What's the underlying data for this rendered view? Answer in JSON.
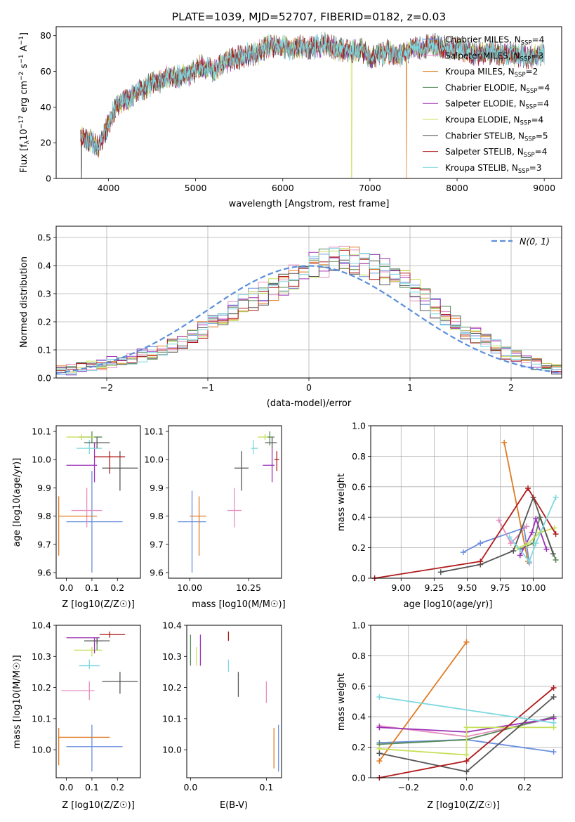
{
  "figure": {
    "title": "PLATE=1039, MJD=52707, FIBERID=0182, z=0.03"
  },
  "colors": {
    "Chabrier MILES": "#6b8fde",
    "Salpeter MILES": "#e58fc0",
    "Kroupa MILES": "#e07b22",
    "Chabrier ELODIE": "#5a8a5a",
    "Salpeter ELODIE": "#9b30b8",
    "Kroupa ELODIE": "#c6e05a",
    "Chabrier STELIB": "#555555",
    "Salpeter STELIB": "#b01c1c",
    "Kroupa STELIB": "#7fd8e0",
    "normal": "#5b8fdb"
  },
  "chart_data": [
    {
      "id": "spectrum",
      "type": "line",
      "xlabel": "wavelength [Angstrom, rest frame]",
      "ylabel": "Flux [f_λ 10^-17 erg cm^-2 s^-1 A^-1]",
      "xlim": [
        3400,
        9200
      ],
      "ylim": [
        0,
        85
      ],
      "xticks": [
        4000,
        5000,
        6000,
        7000,
        8000,
        9000
      ],
      "yticks": [
        0,
        20,
        40,
        60,
        80
      ],
      "grid": false,
      "legend_position": "top-right",
      "series": [
        {
          "name": "Chabrier MILES, N_SSP=4",
          "label": "Chabrier MILES, N",
          "nssp": "=4"
        },
        {
          "name": "Salpeter MILES, N_SSP=3",
          "label": "Salpeter MILES, N",
          "nssp": "=3"
        },
        {
          "name": "Kroupa MILES, N_SSP=2",
          "label": "Kroupa MILES, N",
          "nssp": "=2"
        },
        {
          "name": "Chabrier ELODIE, N_SSP=4",
          "label": "Chabrier ELODIE, N",
          "nssp": "=4"
        },
        {
          "name": "Salpeter ELODIE, N_SSP=4",
          "label": "Salpeter ELODIE, N",
          "nssp": "=4"
        },
        {
          "name": "Kroupa ELODIE, N_SSP=4",
          "label": "Kroupa ELODIE, N",
          "nssp": "=4"
        },
        {
          "name": "Chabrier STELIB, N_SSP=5",
          "label": "Chabrier STELIB, N",
          "nssp": "=5"
        },
        {
          "name": "Salpeter STELIB, N_SSP=4",
          "label": "Salpeter STELIB, N",
          "nssp": "=4"
        },
        {
          "name": "Kroupa STELIB, N_SSP=3",
          "label": "Kroupa STELIB, N",
          "nssp": "=3"
        }
      ],
      "continuum": {
        "x": [
          3680,
          3720,
          3800,
          3900,
          4000,
          4050,
          4100,
          4200,
          4300,
          4400,
          4500,
          4600,
          4700,
          4800,
          4900,
          5000,
          5100,
          5200,
          5300,
          5400,
          5500,
          5600,
          5700,
          5800,
          5900,
          6000,
          6100,
          6200,
          6300,
          6400,
          6500,
          6600,
          6700,
          6800,
          6900,
          7000,
          7100,
          7200,
          7300,
          7400,
          7500,
          7600,
          7700,
          7800,
          7900,
          8000,
          8100,
          8200,
          8300,
          8400,
          8500,
          8600,
          8700,
          8800,
          8900,
          9000
        ],
        "y": [
          25,
          22,
          21,
          18,
          31,
          36,
          40,
          44,
          47,
          50,
          53,
          55,
          57,
          57,
          58,
          61,
          63,
          61,
          64,
          67,
          68,
          69,
          70,
          73,
          75,
          74,
          72,
          74,
          73,
          74,
          76,
          73,
          72,
          71,
          72,
          67,
          69,
          71,
          69,
          70,
          74,
          73,
          75,
          74,
          73,
          73,
          72,
          70,
          70,
          71,
          70,
          70,
          69,
          68,
          68,
          70
        ]
      },
      "dropouts": [
        {
          "model": "Kroupa MILES",
          "x": 7420,
          "y": 0
        },
        {
          "model": "Kroupa ELODIE",
          "x": 6790,
          "y": 0
        },
        {
          "model": "Chabrier STELIB",
          "x": 3690,
          "y": 0
        }
      ]
    },
    {
      "id": "residuals",
      "type": "area",
      "xlabel": "(data-model)/error",
      "ylabel": "Normed distribution",
      "xlim": [
        -2.5,
        2.5
      ],
      "ylim": [
        0,
        0.54
      ],
      "xticks": [
        -2,
        -1,
        0,
        1,
        2
      ],
      "yticks": [
        0.0,
        0.1,
        0.2,
        0.3,
        0.4,
        0.5
      ],
      "grid": true,
      "legend_position": "top-right",
      "legend_label": "N(0, 1)",
      "bin_width": 0.1,
      "bin_start": -2.5,
      "heights": [
        0.027,
        0.03,
        0.035,
        0.04,
        0.05,
        0.055,
        0.06,
        0.07,
        0.08,
        0.09,
        0.1,
        0.115,
        0.13,
        0.15,
        0.17,
        0.19,
        0.21,
        0.235,
        0.26,
        0.28,
        0.3,
        0.32,
        0.34,
        0.36,
        0.38,
        0.4,
        0.41,
        0.42,
        0.43,
        0.42,
        0.41,
        0.4,
        0.38,
        0.36,
        0.34,
        0.31,
        0.28,
        0.25,
        0.22,
        0.19,
        0.17,
        0.15,
        0.13,
        0.11,
        0.09,
        0.075,
        0.06,
        0.05,
        0.04,
        0.033
      ]
    },
    {
      "id": "age-vs-Z",
      "type": "scatter",
      "xlabel": "Z [log10(Z/Z☉)]",
      "ylabel": "age [log10(age/yr)]",
      "xlim": [
        -0.04,
        0.29
      ],
      "ylim": [
        9.58,
        10.12
      ],
      "xticks": [
        0.0,
        0.1,
        0.2
      ],
      "yticks": [
        9.6,
        9.7,
        9.8,
        9.9,
        10.0,
        10.1
      ],
      "points": [
        {
          "model": "Chabrier MILES",
          "x": 0.1,
          "y": 9.78,
          "xlo": 0.0,
          "xhi": 0.22,
          "ylo": 9.6,
          "yhi": 9.96
        },
        {
          "model": "Salpeter MILES",
          "x": 0.08,
          "y": 9.82,
          "xlo": 0.02,
          "xhi": 0.14,
          "ylo": 9.76,
          "yhi": 9.9
        },
        {
          "model": "Kroupa MILES",
          "x": -0.03,
          "y": 9.8,
          "xlo": -0.03,
          "xhi": 0.12,
          "ylo": 9.66,
          "yhi": 9.87
        },
        {
          "model": "Chabrier ELODIE",
          "x": 0.1,
          "y": 10.08,
          "xlo": 0.05,
          "xhi": 0.14,
          "ylo": 10.06,
          "yhi": 10.1
        },
        {
          "model": "Salpeter ELODIE",
          "x": 0.11,
          "y": 9.98,
          "xlo": 0.0,
          "xhi": 0.12,
          "ylo": 9.92,
          "yhi": 10.06
        },
        {
          "model": "Kroupa ELODIE",
          "x": 0.06,
          "y": 10.08,
          "xlo": 0.0,
          "xhi": 0.11,
          "ylo": 10.07,
          "yhi": 10.09
        },
        {
          "model": "Chabrier STELIB",
          "x": 0.21,
          "y": 9.97,
          "xlo": 0.14,
          "xhi": 0.28,
          "ylo": 9.89,
          "yhi": 10.03
        },
        {
          "model": "Salpeter STELIB",
          "x": 0.17,
          "y": 10.01,
          "xlo": 0.11,
          "xhi": 0.23,
          "ylo": 9.95,
          "yhi": 10.03
        },
        {
          "model": "Kroupa STELIB",
          "x": 0.09,
          "y": 10.04,
          "xlo": 0.04,
          "xhi": 0.14,
          "ylo": 10.02,
          "yhi": 10.07
        },
        {
          "model": "Chabrier STELIB",
          "x": 0.12,
          "y": 10.06,
          "xlo": 0.07,
          "xhi": 0.17,
          "ylo": 10.04,
          "yhi": 10.08
        }
      ]
    },
    {
      "id": "age-vs-mass",
      "type": "scatter",
      "xlabel": "mass [log10(M/M☉)]",
      "ylabel": "",
      "xlim": [
        9.91,
        10.39
      ],
      "ylim": [
        9.58,
        10.12
      ],
      "xticks": [
        10.0,
        10.25
      ],
      "yticks": [
        9.6,
        9.7,
        9.8,
        9.9,
        10.0,
        10.1
      ],
      "points": [
        {
          "model": "Chabrier MILES",
          "x": 10.01,
          "y": 9.78,
          "xlo": 9.95,
          "xhi": 10.07,
          "ylo": 9.6,
          "yhi": 9.89
        },
        {
          "model": "Kroupa MILES",
          "x": 10.04,
          "y": 9.8,
          "xlo": 10.0,
          "xhi": 10.07,
          "ylo": 9.66,
          "yhi": 9.87
        },
        {
          "model": "Salpeter MILES",
          "x": 10.19,
          "y": 9.82,
          "xlo": 10.16,
          "xhi": 10.22,
          "ylo": 9.76,
          "yhi": 9.9
        },
        {
          "model": "Chabrier STELIB",
          "x": 10.22,
          "y": 9.97,
          "xlo": 10.19,
          "xhi": 10.25,
          "ylo": 9.89,
          "yhi": 10.03
        },
        {
          "model": "Salpeter ELODIE",
          "x": 10.35,
          "y": 9.98,
          "xlo": 10.31,
          "xhi": 10.36,
          "ylo": 9.92,
          "yhi": 10.04
        },
        {
          "model": "Salpeter STELIB",
          "x": 10.37,
          "y": 10.0,
          "xlo": 10.36,
          "xhi": 10.38,
          "ylo": 9.96,
          "yhi": 10.03
        },
        {
          "model": "Kroupa STELIB",
          "x": 10.27,
          "y": 10.04,
          "xlo": 10.26,
          "xhi": 10.29,
          "ylo": 10.02,
          "yhi": 10.07
        },
        {
          "model": "Kroupa ELODIE",
          "x": 10.32,
          "y": 10.08,
          "xlo": 10.29,
          "xhi": 10.35,
          "ylo": 10.07,
          "yhi": 10.09
        },
        {
          "model": "Chabrier ELODIE",
          "x": 10.34,
          "y": 10.08,
          "xlo": 10.33,
          "xhi": 10.36,
          "ylo": 10.05,
          "yhi": 10.1
        },
        {
          "model": "Chabrier STELIB",
          "x": 10.35,
          "y": 10.06,
          "xlo": 10.32,
          "xhi": 10.37,
          "ylo": 10.04,
          "yhi": 10.08
        }
      ]
    },
    {
      "id": "massweight-vs-age",
      "type": "line",
      "xlabel": "age [log10(age/yr)]",
      "ylabel": "mass weight",
      "xlim": [
        8.77,
        10.22
      ],
      "ylim": [
        0,
        1
      ],
      "xticks": [
        9.0,
        9.25,
        9.5,
        9.75,
        10.0
      ],
      "yticks": [
        0.0,
        0.2,
        0.4,
        0.6,
        0.8,
        1.0
      ],
      "grid": true,
      "series": [
        {
          "model": "Chabrier MILES",
          "x": [
            9.47,
            9.6,
            9.93,
            9.97
          ],
          "y": [
            0.17,
            0.23,
            0.33,
            0.1
          ]
        },
        {
          "model": "Salpeter MILES",
          "x": [
            9.74,
            9.83,
            9.95
          ],
          "y": [
            0.38,
            0.23,
            0.34
          ]
        },
        {
          "model": "Kroupa MILES",
          "x": [
            9.78,
            9.96
          ],
          "y": [
            0.89,
            0.11
          ]
        },
        {
          "model": "Chabrier ELODIE",
          "x": [
            9.9,
            10.0,
            10.05,
            10.17
          ],
          "y": [
            0.19,
            0.23,
            0.4,
            0.12
          ]
        },
        {
          "model": "Salpeter ELODIE",
          "x": [
            9.9,
            9.99,
            10.02,
            10.1
          ],
          "y": [
            0.15,
            0.3,
            0.39,
            0.19
          ]
        },
        {
          "model": "Kroupa ELODIE",
          "x": [
            9.88,
            9.95,
            10.05,
            10.16
          ],
          "y": [
            0.2,
            0.22,
            0.3,
            0.33
          ]
        },
        {
          "model": "Chabrier STELIB",
          "x": [
            9.3,
            9.6,
            9.85,
            10.0,
            10.15
          ],
          "y": [
            0.04,
            0.09,
            0.18,
            0.53,
            0.16
          ]
        },
        {
          "model": "Salpeter STELIB",
          "x": [
            8.8,
            9.6,
            9.96,
            10.17
          ],
          "y": [
            0.0,
            0.11,
            0.59,
            0.29
          ]
        },
        {
          "model": "Kroupa STELIB",
          "x": [
            9.82,
            9.97,
            10.02,
            10.17
          ],
          "y": [
            0.27,
            0.11,
            0.23,
            0.53
          ]
        }
      ]
    },
    {
      "id": "mass-vs-Z",
      "type": "scatter",
      "xlabel": "Z [log10(Z/Z☉)]",
      "ylabel": "mass [log10(M/M☉)]",
      "xlim": [
        -0.04,
        0.29
      ],
      "ylim": [
        9.91,
        10.4
      ],
      "xticks": [
        0.0,
        0.1,
        0.2
      ],
      "yticks": [
        10.0,
        10.1,
        10.2,
        10.3,
        10.4
      ],
      "points": [
        {
          "model": "Chabrier MILES",
          "x": 0.1,
          "y": 10.01,
          "xlo": 0.0,
          "xhi": 0.22,
          "ylo": 9.93,
          "yhi": 10.08
        },
        {
          "model": "Kroupa MILES",
          "x": -0.03,
          "y": 10.04,
          "xlo": -0.03,
          "xhi": 0.17,
          "ylo": 9.95,
          "yhi": 10.07
        },
        {
          "model": "Salpeter MILES",
          "x": 0.09,
          "y": 10.19,
          "xlo": -0.02,
          "xhi": 0.11,
          "ylo": 10.16,
          "yhi": 10.22
        },
        {
          "model": "Chabrier STELIB",
          "x": 0.21,
          "y": 10.22,
          "xlo": 0.14,
          "xhi": 0.28,
          "ylo": 10.18,
          "yhi": 10.25
        },
        {
          "model": "Kroupa STELIB",
          "x": 0.09,
          "y": 10.27,
          "xlo": 0.05,
          "xhi": 0.13,
          "ylo": 10.26,
          "yhi": 10.29
        },
        {
          "model": "Kroupa ELODIE",
          "x": 0.1,
          "y": 10.32,
          "xlo": 0.03,
          "xhi": 0.14,
          "ylo": 10.3,
          "yhi": 10.33
        },
        {
          "model": "Chabrier ELODIE",
          "x": 0.12,
          "y": 10.35,
          "xlo": 0.07,
          "xhi": 0.14,
          "ylo": 10.32,
          "yhi": 10.36
        },
        {
          "model": "Salpeter ELODIE",
          "x": 0.11,
          "y": 10.36,
          "xlo": 0.0,
          "xhi": 0.13,
          "ylo": 10.31,
          "yhi": 10.36
        },
        {
          "model": "Salpeter STELIB",
          "x": 0.17,
          "y": 10.37,
          "xlo": 0.13,
          "xhi": 0.23,
          "ylo": 10.36,
          "yhi": 10.38
        },
        {
          "model": "Chabrier STELIB",
          "x": 0.12,
          "y": 10.35,
          "xlo": 0.07,
          "xhi": 0.17,
          "ylo": 10.34,
          "yhi": 10.36
        }
      ]
    },
    {
      "id": "mass-vs-EBV",
      "type": "scatter",
      "xlabel": "E(B-V)",
      "ylabel": "",
      "xlim": [
        -0.005,
        0.12
      ],
      "ylim": [
        9.91,
        10.4
      ],
      "xticks": [
        0.0,
        0.1
      ],
      "yticks": [
        10.0,
        10.1,
        10.2,
        10.3,
        10.4
      ],
      "points": [
        {
          "model": "Chabrier ELODIE",
          "x": 0.0,
          "y": 10.34,
          "ylo": 10.27,
          "yhi": 10.37
        },
        {
          "model": "Kroupa ELODIE",
          "x": 0.008,
          "y": 10.3,
          "ylo": 10.27,
          "yhi": 10.33
        },
        {
          "model": "Salpeter ELODIE",
          "x": 0.013,
          "y": 10.33,
          "ylo": 10.27,
          "yhi": 10.37
        },
        {
          "model": "Salpeter STELIB",
          "x": 0.05,
          "y": 10.36,
          "ylo": 10.35,
          "yhi": 10.38
        },
        {
          "model": "Kroupa STELIB",
          "x": 0.05,
          "y": 10.27,
          "ylo": 10.25,
          "yhi": 10.29
        },
        {
          "model": "Chabrier STELIB",
          "x": 0.063,
          "y": 10.21,
          "ylo": 10.17,
          "yhi": 10.25
        },
        {
          "model": "Salpeter MILES",
          "x": 0.1,
          "y": 10.19,
          "ylo": 10.15,
          "yhi": 10.22
        },
        {
          "model": "Kroupa MILES",
          "x": 0.11,
          "y": 10.0,
          "ylo": 9.94,
          "yhi": 10.07
        },
        {
          "model": "Chabrier MILES",
          "x": 0.116,
          "y": 10.01,
          "ylo": 9.93,
          "yhi": 10.08
        }
      ]
    },
    {
      "id": "massweight-vs-Z",
      "type": "line",
      "xlabel": "Z [log10(Z/Z☉)]",
      "ylabel": "mass weight",
      "xlim": [
        -0.33,
        0.33
      ],
      "ylim": [
        0,
        1
      ],
      "xticks": [
        -0.2,
        0.0,
        0.2
      ],
      "yticks": [
        0.0,
        0.2,
        0.4,
        0.6,
        0.8,
        1.0
      ],
      "grid": true,
      "series": [
        {
          "model": "Chabrier MILES",
          "x": [
            -0.3,
            0.0,
            0.3
          ],
          "y": [
            0.23,
            0.25,
            0.17
          ]
        },
        {
          "model": "Salpeter MILES",
          "x": [
            -0.3,
            0.0,
            0.3
          ],
          "y": [
            0.34,
            0.27,
            0.39
          ]
        },
        {
          "model": "Kroupa MILES",
          "x": [
            -0.3,
            0.0
          ],
          "y": [
            0.11,
            0.89
          ]
        },
        {
          "model": "Chabrier ELODIE",
          "x": [
            -0.3,
            0.0,
            0.3
          ],
          "y": [
            0.22,
            0.25,
            0.4
          ]
        },
        {
          "model": "Salpeter ELODIE",
          "x": [
            -0.3,
            0.0,
            0.3
          ],
          "y": [
            0.33,
            0.3,
            0.39
          ]
        },
        {
          "model": "Kroupa ELODIE",
          "x": [
            -0.3,
            0.0,
            0.0,
            0.3
          ],
          "y": [
            0.19,
            0.15,
            0.33,
            0.33
          ]
        },
        {
          "model": "Chabrier STELIB",
          "x": [
            -0.3,
            0.0,
            0.3
          ],
          "y": [
            0.16,
            0.04,
            0.53
          ]
        },
        {
          "model": "Salpeter STELIB",
          "x": [
            -0.3,
            0.0,
            0.3
          ],
          "y": [
            0.0,
            0.11,
            0.59
          ]
        },
        {
          "model": "Kroupa STELIB",
          "x": [
            -0.3,
            0.3
          ],
          "y": [
            0.53,
            0.36
          ]
        }
      ]
    }
  ]
}
